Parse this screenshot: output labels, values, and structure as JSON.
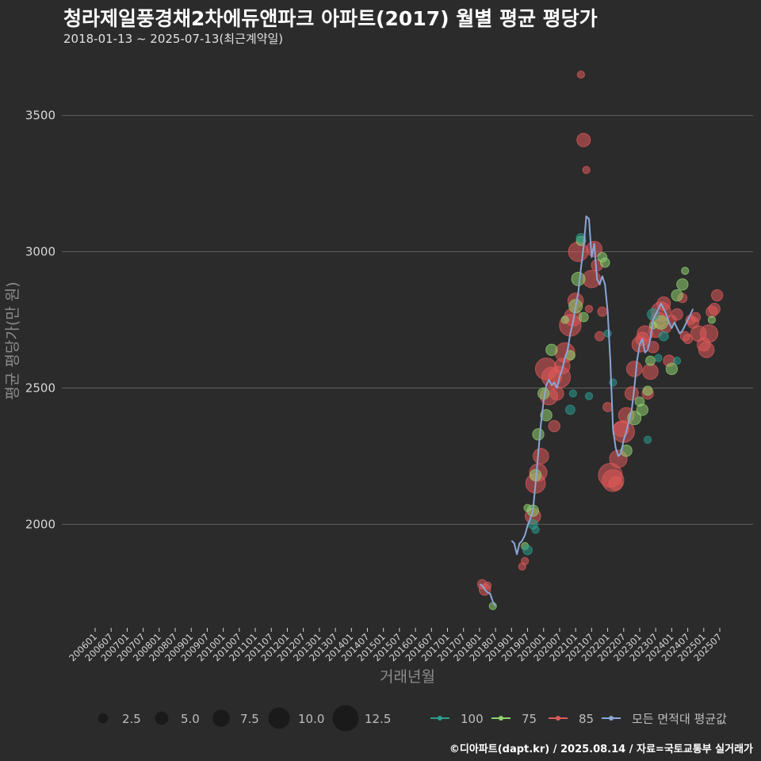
{
  "header": {
    "title": "청라제일풍경채2차에듀앤파크 아파트(2017) 월별 평균 평당가",
    "subtitle": "2018-01-13 ~ 2025-07-13(최근계약일)"
  },
  "footer": {
    "caption": "©디아파트(dapt.kr) / 2025.08.14 / 자료=국토교통부 실거래가"
  },
  "colors": {
    "background": "#2b2b2b",
    "grid": "#5e5e5e",
    "series_100": "#2a9d8f",
    "series_75": "#8fd16f",
    "series_85": "#e05a5a",
    "series_avg": "#8aa7d6"
  },
  "chart_data": {
    "type": "scatter",
    "xlabel": "거래년월",
    "ylabel": "평균 평당가(만 원)",
    "ylim": [
      1620,
      3720
    ],
    "yticks": [
      2000,
      2500,
      3000,
      3500
    ],
    "x_start": "2006-01",
    "x_end": "2025-07",
    "x_tick_labels": [
      "200601",
      "200607",
      "200701",
      "200707",
      "200801",
      "200807",
      "200901",
      "200907",
      "201001",
      "201007",
      "201101",
      "201107",
      "201201",
      "201207",
      "201301",
      "201307",
      "201401",
      "201407",
      "201501",
      "201507",
      "201601",
      "201607",
      "201701",
      "201707",
      "201801",
      "201807",
      "201901",
      "201907",
      "202001",
      "202007",
      "202101",
      "202107",
      "202201",
      "202207",
      "202301",
      "202307",
      "202401",
      "202407",
      "202501",
      "202507"
    ],
    "size_legend": {
      "values": [
        "2.5",
        "5.0",
        "7.5",
        "10.0",
        "12.5"
      ]
    },
    "color_legend": [
      {
        "key": "series_100",
        "label": "100"
      },
      {
        "key": "series_75",
        "label": "75"
      },
      {
        "key": "series_85",
        "label": "85"
      },
      {
        "key": "series_avg",
        "label": "모든 면적대 평균값"
      }
    ],
    "average_line": [
      {
        "x": "2018-01",
        "y": 1780
      },
      {
        "x": "2018-02",
        "y": 1775
      },
      {
        "x": "2018-03",
        "y": 1760
      },
      {
        "x": "2018-04",
        "y": 1750
      },
      {
        "x": "2018-05",
        "y": 1745
      },
      {
        "x": "2018-06",
        "y": 1715
      },
      {
        "x": "2018-07",
        "y": 1700
      },
      {
        "x": null,
        "y": null
      },
      {
        "x": "2019-01",
        "y": 1940
      },
      {
        "x": "2019-02",
        "y": 1930
      },
      {
        "x": "2019-03",
        "y": 1890
      },
      {
        "x": "2019-04",
        "y": 1930
      },
      {
        "x": "2019-05",
        "y": 1940
      },
      {
        "x": "2019-06",
        "y": 1960
      },
      {
        "x": "2019-07",
        "y": 1995
      },
      {
        "x": "2019-08",
        "y": 2020
      },
      {
        "x": "2019-09",
        "y": 2050
      },
      {
        "x": "2019-10",
        "y": 2150
      },
      {
        "x": "2019-11",
        "y": 2260
      },
      {
        "x": "2019-12",
        "y": 2370
      },
      {
        "x": "2020-01",
        "y": 2450
      },
      {
        "x": "2020-02",
        "y": 2510
      },
      {
        "x": "2020-03",
        "y": 2530
      },
      {
        "x": "2020-04",
        "y": 2510
      },
      {
        "x": "2020-05",
        "y": 2520
      },
      {
        "x": "2020-06",
        "y": 2500
      },
      {
        "x": "2020-07",
        "y": 2540
      },
      {
        "x": "2020-08",
        "y": 2570
      },
      {
        "x": "2020-09",
        "y": 2610
      },
      {
        "x": "2020-10",
        "y": 2640
      },
      {
        "x": "2020-11",
        "y": 2700
      },
      {
        "x": "2020-12",
        "y": 2740
      },
      {
        "x": "2021-01",
        "y": 2800
      },
      {
        "x": "2021-02",
        "y": 2850
      },
      {
        "x": "2021-03",
        "y": 2940
      },
      {
        "x": "2021-04",
        "y": 3020
      },
      {
        "x": "2021-05",
        "y": 3130
      },
      {
        "x": "2021-06",
        "y": 3120
      },
      {
        "x": "2021-07",
        "y": 2980
      },
      {
        "x": "2021-08",
        "y": 3030
      },
      {
        "x": "2021-09",
        "y": 2900
      },
      {
        "x": "2021-10",
        "y": 2880
      },
      {
        "x": "2021-11",
        "y": 2910
      },
      {
        "x": "2021-12",
        "y": 2880
      },
      {
        "x": "2022-01",
        "y": 2780
      },
      {
        "x": "2022-02",
        "y": 2600
      },
      {
        "x": "2022-03",
        "y": 2350
      },
      {
        "x": "2022-04",
        "y": 2280
      },
      {
        "x": "2022-05",
        "y": 2250
      },
      {
        "x": "2022-06",
        "y": 2260
      },
      {
        "x": "2022-07",
        "y": 2310
      },
      {
        "x": "2022-08",
        "y": 2340
      },
      {
        "x": "2022-09",
        "y": 2380
      },
      {
        "x": "2022-10",
        "y": 2420
      },
      {
        "x": "2022-11",
        "y": 2500
      },
      {
        "x": "2022-12",
        "y": 2600
      },
      {
        "x": "2023-01",
        "y": 2660
      },
      {
        "x": "2023-02",
        "y": 2680
      },
      {
        "x": "2023-03",
        "y": 2630
      },
      {
        "x": "2023-04",
        "y": 2640
      },
      {
        "x": "2023-05",
        "y": 2680
      },
      {
        "x": "2023-06",
        "y": 2750
      },
      {
        "x": "2023-07",
        "y": 2770
      },
      {
        "x": "2023-08",
        "y": 2790
      },
      {
        "x": "2023-09",
        "y": 2810
      },
      {
        "x": "2023-10",
        "y": 2790
      },
      {
        "x": "2023-11",
        "y": 2770
      },
      {
        "x": "2023-12",
        "y": 2740
      },
      {
        "x": "2024-01",
        "y": 2720
      },
      {
        "x": "2024-02",
        "y": 2740
      },
      {
        "x": "2024-03",
        "y": 2720
      },
      {
        "x": "2024-04",
        "y": 2700
      },
      {
        "x": "2024-05",
        "y": 2710
      },
      {
        "x": "2024-06",
        "y": 2730
      },
      {
        "x": "2024-07",
        "y": 2750
      },
      {
        "x": "2024-08",
        "y": 2770
      },
      {
        "x": "2024-09",
        "y": 2790
      }
    ],
    "series": [
      {
        "name": "100",
        "color_key": "series_100",
        "points": [
          {
            "x": "2019-07",
            "y": 1905,
            "size": 3
          },
          {
            "x": "2019-09",
            "y": 2000,
            "size": 3
          },
          {
            "x": "2019-10",
            "y": 1980,
            "size": 2
          },
          {
            "x": "2020-11",
            "y": 2420,
            "size": 3
          },
          {
            "x": "2020-12",
            "y": 2480,
            "size": 2
          },
          {
            "x": "2021-03",
            "y": 3050,
            "size": 3
          },
          {
            "x": "2021-06",
            "y": 2470,
            "size": 2
          },
          {
            "x": "2022-01",
            "y": 2700,
            "size": 2
          },
          {
            "x": "2022-03",
            "y": 2520,
            "size": 2
          },
          {
            "x": "2023-04",
            "y": 2310,
            "size": 2
          },
          {
            "x": "2023-06",
            "y": 2770,
            "size": 4
          },
          {
            "x": "2023-08",
            "y": 2610,
            "size": 2
          },
          {
            "x": "2023-10",
            "y": 2690,
            "size": 3
          },
          {
            "x": "2024-03",
            "y": 2600,
            "size": 2
          }
        ]
      },
      {
        "name": "75",
        "color_key": "series_75",
        "points": [
          {
            "x": "2018-06",
            "y": 1700,
            "size": 2
          },
          {
            "x": "2019-06",
            "y": 1920,
            "size": 2
          },
          {
            "x": "2019-07",
            "y": 2060,
            "size": 2
          },
          {
            "x": "2019-09",
            "y": 2050,
            "size": 4
          },
          {
            "x": "2019-10",
            "y": 2180,
            "size": 4
          },
          {
            "x": "2019-11",
            "y": 2330,
            "size": 4
          },
          {
            "x": "2020-01",
            "y": 2480,
            "size": 4
          },
          {
            "x": "2020-02",
            "y": 2400,
            "size": 4
          },
          {
            "x": "2020-04",
            "y": 2640,
            "size": 4
          },
          {
            "x": "2020-09",
            "y": 2750,
            "size": 2
          },
          {
            "x": "2020-11",
            "y": 2620,
            "size": 3
          },
          {
            "x": "2021-01",
            "y": 2800,
            "size": 5
          },
          {
            "x": "2021-02",
            "y": 2900,
            "size": 5
          },
          {
            "x": "2021-03",
            "y": 3040,
            "size": 3
          },
          {
            "x": "2021-04",
            "y": 2760,
            "size": 3
          },
          {
            "x": "2021-11",
            "y": 2980,
            "size": 3
          },
          {
            "x": "2021-12",
            "y": 2960,
            "size": 3
          },
          {
            "x": "2022-08",
            "y": 2270,
            "size": 4
          },
          {
            "x": "2022-11",
            "y": 2390,
            "size": 5
          },
          {
            "x": "2023-01",
            "y": 2450,
            "size": 3
          },
          {
            "x": "2023-02",
            "y": 2420,
            "size": 4
          },
          {
            "x": "2023-04",
            "y": 2490,
            "size": 3
          },
          {
            "x": "2023-05",
            "y": 2600,
            "size": 3
          },
          {
            "x": "2023-06",
            "y": 2730,
            "size": 2
          },
          {
            "x": "2023-09",
            "y": 2740,
            "size": 5
          },
          {
            "x": "2024-01",
            "y": 2570,
            "size": 4
          },
          {
            "x": "2024-03",
            "y": 2840,
            "size": 4
          },
          {
            "x": "2024-05",
            "y": 2880,
            "size": 4
          },
          {
            "x": "2024-06",
            "y": 2930,
            "size": 2
          },
          {
            "x": "2025-04",
            "y": 2750,
            "size": 2
          }
        ]
      },
      {
        "name": "85",
        "color_key": "series_85",
        "points": [
          {
            "x": "2018-02",
            "y": 1780,
            "size": 3
          },
          {
            "x": "2018-03",
            "y": 1760,
            "size": 4
          },
          {
            "x": "2018-04",
            "y": 1775,
            "size": 2
          },
          {
            "x": "2019-05",
            "y": 1845,
            "size": 2
          },
          {
            "x": "2019-06",
            "y": 1865,
            "size": 2
          },
          {
            "x": "2019-09",
            "y": 2030,
            "size": 6
          },
          {
            "x": "2019-10",
            "y": 2150,
            "size": 8
          },
          {
            "x": "2019-11",
            "y": 2190,
            "size": 7
          },
          {
            "x": "2019-12",
            "y": 2250,
            "size": 6
          },
          {
            "x": "2020-02",
            "y": 2570,
            "size": 9
          },
          {
            "x": "2020-03",
            "y": 2470,
            "size": 7
          },
          {
            "x": "2020-04",
            "y": 2540,
            "size": 8
          },
          {
            "x": "2020-05",
            "y": 2360,
            "size": 4
          },
          {
            "x": "2020-06",
            "y": 2480,
            "size": 5
          },
          {
            "x": "2020-07",
            "y": 2540,
            "size": 9
          },
          {
            "x": "2020-08",
            "y": 2580,
            "size": 6
          },
          {
            "x": "2020-09",
            "y": 2630,
            "size": 8
          },
          {
            "x": "2020-11",
            "y": 2730,
            "size": 9
          },
          {
            "x": "2020-12",
            "y": 2760,
            "size": 7
          },
          {
            "x": "2021-01",
            "y": 2820,
            "size": 6
          },
          {
            "x": "2021-02",
            "y": 3000,
            "size": 8
          },
          {
            "x": "2021-03",
            "y": 3650,
            "size": 2
          },
          {
            "x": "2021-04",
            "y": 3410,
            "size": 5
          },
          {
            "x": "2021-05",
            "y": 3300,
            "size": 2
          },
          {
            "x": "2021-06",
            "y": 2790,
            "size": 2
          },
          {
            "x": "2021-07",
            "y": 2900,
            "size": 7
          },
          {
            "x": "2021-08",
            "y": 3010,
            "size": 6
          },
          {
            "x": "2021-09",
            "y": 2950,
            "size": 4
          },
          {
            "x": "2021-10",
            "y": 2690,
            "size": 3
          },
          {
            "x": "2021-11",
            "y": 2780,
            "size": 3
          },
          {
            "x": "2022-01",
            "y": 2430,
            "size": 3
          },
          {
            "x": "2022-02",
            "y": 2180,
            "size": 10
          },
          {
            "x": "2022-03",
            "y": 2160,
            "size": 9
          },
          {
            "x": "2022-04",
            "y": 2150,
            "size": 5
          },
          {
            "x": "2022-05",
            "y": 2240,
            "size": 7
          },
          {
            "x": "2022-06",
            "y": 2350,
            "size": 6
          },
          {
            "x": "2022-07",
            "y": 2340,
            "size": 9
          },
          {
            "x": "2022-08",
            "y": 2400,
            "size": 6
          },
          {
            "x": "2022-10",
            "y": 2480,
            "size": 5
          },
          {
            "x": "2022-11",
            "y": 2570,
            "size": 6
          },
          {
            "x": "2023-01",
            "y": 2660,
            "size": 6
          },
          {
            "x": "2023-02",
            "y": 2680,
            "size": 5
          },
          {
            "x": "2023-03",
            "y": 2700,
            "size": 6
          },
          {
            "x": "2023-04",
            "y": 2480,
            "size": 4
          },
          {
            "x": "2023-05",
            "y": 2560,
            "size": 6
          },
          {
            "x": "2023-06",
            "y": 2650,
            "size": 4
          },
          {
            "x": "2023-07",
            "y": 2710,
            "size": 5
          },
          {
            "x": "2023-08",
            "y": 2750,
            "size": 6
          },
          {
            "x": "2023-09",
            "y": 2780,
            "size": 8
          },
          {
            "x": "2023-10",
            "y": 2810,
            "size": 5
          },
          {
            "x": "2023-11",
            "y": 2720,
            "size": 3
          },
          {
            "x": "2023-12",
            "y": 2600,
            "size": 4
          },
          {
            "x": "2024-01",
            "y": 2750,
            "size": 3
          },
          {
            "x": "2024-03",
            "y": 2770,
            "size": 4
          },
          {
            "x": "2024-05",
            "y": 2830,
            "size": 3
          },
          {
            "x": "2024-06",
            "y": 2690,
            "size": 3
          },
          {
            "x": "2024-07",
            "y": 2680,
            "size": 3
          },
          {
            "x": "2024-08",
            "y": 2750,
            "size": 3
          },
          {
            "x": "2024-09",
            "y": 2740,
            "size": 4
          },
          {
            "x": "2024-10",
            "y": 2760,
            "size": 3
          },
          {
            "x": "2024-11",
            "y": 2700,
            "size": 6
          },
          {
            "x": "2025-01",
            "y": 2660,
            "size": 5
          },
          {
            "x": "2025-02",
            "y": 2640,
            "size": 6
          },
          {
            "x": "2025-03",
            "y": 2700,
            "size": 7
          },
          {
            "x": "2025-04",
            "y": 2780,
            "size": 4
          },
          {
            "x": "2025-05",
            "y": 2790,
            "size": 4
          },
          {
            "x": "2025-06",
            "y": 2840,
            "size": 4
          }
        ]
      }
    ]
  }
}
